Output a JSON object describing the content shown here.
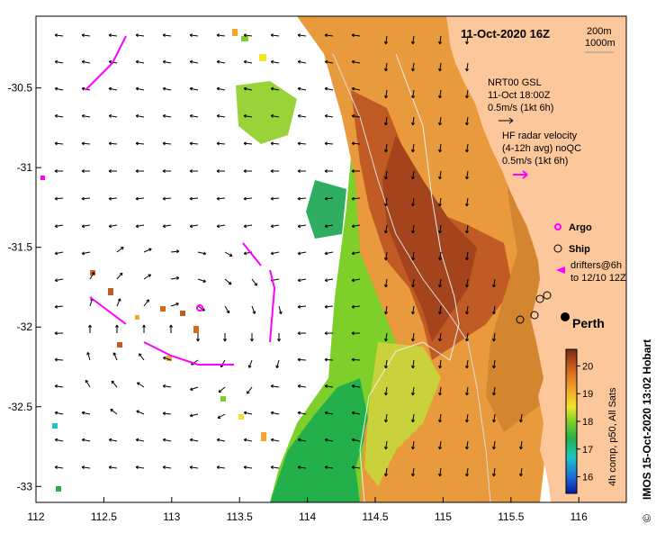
{
  "title": "11-Oct-2020 16Z",
  "depth_legend": {
    "contour1": "200m",
    "contour2": "1000m"
  },
  "gsl_legend": {
    "line1": "NRT00 GSL",
    "line2": "11-Oct 18:00Z",
    "line3": "0.5m/s (1kt 6h)"
  },
  "hf_legend": {
    "line1": "HF radar velocity",
    "line2": "(4-12h avg) noQC",
    "line3": "0.5m/s (1kt 6h)"
  },
  "argo_label": "Argo",
  "ship_label": "Ship",
  "drifters_line1": "drifters@6h",
  "drifters_line2": "to 12/10 12Z",
  "city_label": "Perth",
  "colorbar": {
    "caption": "4h comp, p50, All Sats",
    "tick_labels": [
      "16",
      "17",
      "18",
      "19",
      "20"
    ],
    "min": 15.4,
    "max": 20.6,
    "ticks": [
      16,
      17,
      18,
      19,
      20
    ]
  },
  "x_axis": {
    "labels": [
      "112",
      "112.5",
      "113",
      "113.5",
      "114",
      "114.5",
      "115",
      "115.5",
      "116"
    ],
    "min": 112,
    "max": 116.35,
    "ticks": [
      112,
      112.5,
      113,
      113.5,
      114,
      114.5,
      115,
      115.5,
      116
    ]
  },
  "y_axis": {
    "labels": [
      "-30.5",
      "-31",
      "-31.5",
      "-32",
      "-32.5",
      "-33"
    ],
    "min": -33.1,
    "max": -30.05,
    "ticks": [
      -30.5,
      -31,
      -31.5,
      -32,
      -32.5,
      -33
    ]
  },
  "credit": "IMOS 15-Oct-2020 13:02 Hobart",
  "copyright": "©",
  "colors": {
    "land": "#fbc79b",
    "argo": "#ff00ff",
    "drifter": "#ff00ff"
  }
}
